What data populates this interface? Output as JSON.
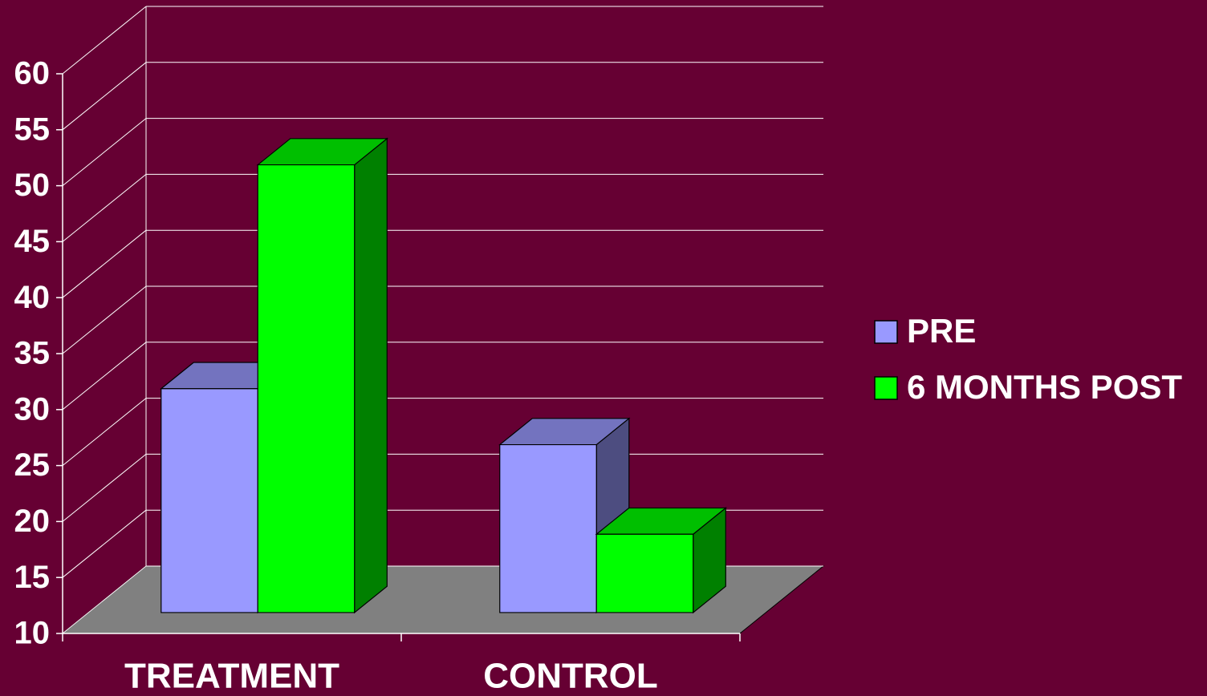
{
  "chart_data": {
    "type": "bar3d",
    "categories": [
      "TREATMENT",
      "CONTROL"
    ],
    "series": [
      {
        "name": "PRE",
        "color": "#9999ff",
        "values": [
          30,
          25
        ]
      },
      {
        "name": "6 MONTHS POST",
        "color": "#00ff00",
        "values": [
          50,
          17
        ]
      }
    ],
    "ylim": [
      10,
      60
    ],
    "yticks": [
      10,
      15,
      20,
      25,
      30,
      35,
      40,
      45,
      50,
      55,
      60
    ],
    "grid": true,
    "legend": "right"
  }
}
